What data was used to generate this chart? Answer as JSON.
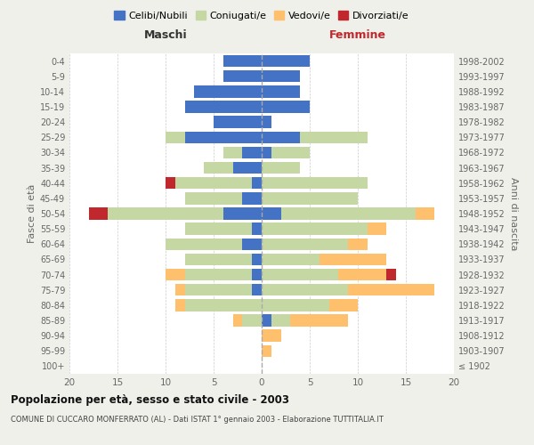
{
  "age_groups": [
    "100+",
    "95-99",
    "90-94",
    "85-89",
    "80-84",
    "75-79",
    "70-74",
    "65-69",
    "60-64",
    "55-59",
    "50-54",
    "45-49",
    "40-44",
    "35-39",
    "30-34",
    "25-29",
    "20-24",
    "15-19",
    "10-14",
    "5-9",
    "0-4"
  ],
  "birth_years": [
    "≤ 1902",
    "1903-1907",
    "1908-1912",
    "1913-1917",
    "1918-1922",
    "1923-1927",
    "1928-1932",
    "1933-1937",
    "1938-1942",
    "1943-1947",
    "1948-1952",
    "1953-1957",
    "1958-1962",
    "1963-1967",
    "1968-1972",
    "1973-1977",
    "1978-1982",
    "1983-1987",
    "1988-1992",
    "1993-1997",
    "1998-2002"
  ],
  "colors": {
    "celibe": "#4472c4",
    "coniugato": "#c5d8a4",
    "vedovo": "#ffc06e",
    "divorziato": "#c0282d"
  },
  "male": {
    "celibe": [
      0,
      0,
      0,
      0,
      0,
      1,
      1,
      1,
      2,
      1,
      4,
      2,
      1,
      3,
      2,
      8,
      5,
      8,
      7,
      4,
      4
    ],
    "coniugato": [
      0,
      0,
      0,
      2,
      8,
      7,
      7,
      7,
      8,
      7,
      12,
      6,
      8,
      3,
      2,
      2,
      0,
      0,
      0,
      0,
      0
    ],
    "vedovo": [
      0,
      0,
      0,
      1,
      1,
      1,
      2,
      0,
      0,
      0,
      0,
      0,
      0,
      0,
      0,
      0,
      0,
      0,
      0,
      0,
      0
    ],
    "divorziato": [
      0,
      0,
      0,
      0,
      0,
      0,
      0,
      0,
      0,
      0,
      2,
      0,
      1,
      0,
      0,
      0,
      0,
      0,
      0,
      0,
      0
    ]
  },
  "female": {
    "celibe": [
      0,
      0,
      0,
      1,
      0,
      0,
      0,
      0,
      0,
      0,
      2,
      0,
      0,
      0,
      1,
      4,
      1,
      5,
      4,
      4,
      5
    ],
    "coniugato": [
      0,
      0,
      0,
      2,
      7,
      9,
      8,
      6,
      9,
      11,
      14,
      10,
      11,
      4,
      4,
      7,
      0,
      0,
      0,
      0,
      0
    ],
    "vedovo": [
      0,
      1,
      2,
      6,
      3,
      9,
      5,
      7,
      2,
      2,
      2,
      0,
      0,
      0,
      0,
      0,
      0,
      0,
      0,
      0,
      0
    ],
    "divorziato": [
      0,
      0,
      0,
      0,
      0,
      0,
      1,
      0,
      0,
      0,
      0,
      0,
      0,
      0,
      0,
      0,
      0,
      0,
      0,
      0,
      0
    ]
  },
  "title": "Popolazione per età, sesso e stato civile - 2003",
  "subtitle": "COMUNE DI CUCCARO MONFERRATO (AL) - Dati ISTAT 1° gennaio 2003 - Elaborazione TUTTITALIA.IT",
  "xlabel_left": "Maschi",
  "xlabel_right": "Femmine",
  "ylabel_left": "Fasce di età",
  "ylabel_right": "Anni di nascita",
  "xlim": 20,
  "background_color": "#f0f0eb",
  "plot_bg": "#ffffff",
  "legend_labels": [
    "Celibi/Nubili",
    "Coniugati/e",
    "Vedovi/e",
    "Divorziati/e"
  ]
}
